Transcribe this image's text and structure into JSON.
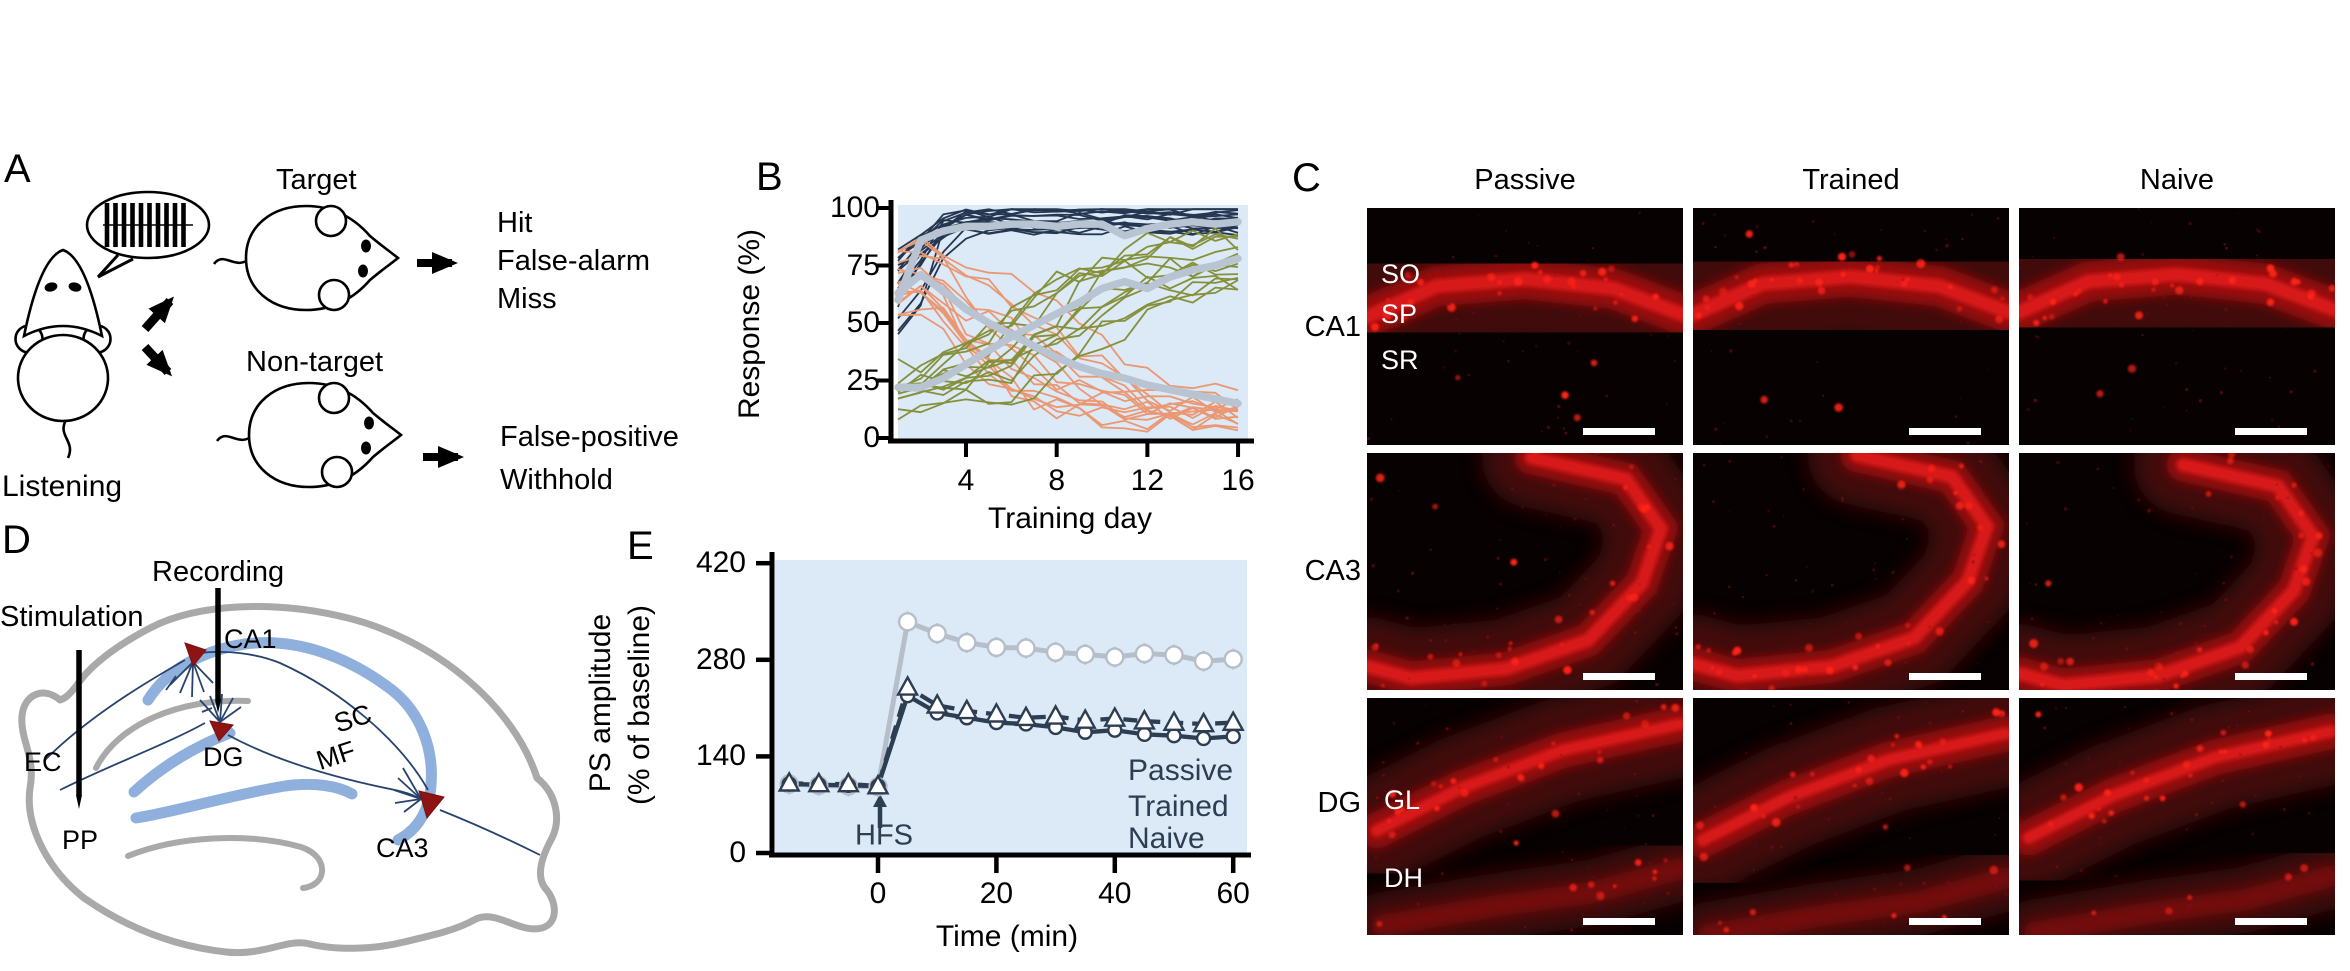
{
  "panels": {
    "a": {
      "label": "A",
      "listening": "Listening",
      "target": "Target",
      "nontarget": "Non-target",
      "target_outcomes": [
        "Hit",
        "False-alarm",
        "Miss"
      ],
      "nontarget_outcomes": [
        "False-positive",
        "Withhold"
      ]
    },
    "b": {
      "label": "B"
    },
    "c": {
      "label": "C",
      "columns": [
        "Passive",
        "Trained",
        "Naive"
      ],
      "rows": [
        {
          "label": "CA1",
          "layers": [
            "SO",
            "SP",
            "SR"
          ]
        },
        {
          "label": "CA3",
          "layers": []
        },
        {
          "label": "DG",
          "layers": [
            "GL",
            "DH"
          ]
        }
      ]
    },
    "d": {
      "label": "D",
      "annotations": {
        "recording": "Recording",
        "stimulation": "Stimulation",
        "ca1": "CA1",
        "sc": "SC",
        "mf": "MF",
        "ec": "EC",
        "dg": "DG",
        "pp": "PP",
        "ca3": "CA3"
      }
    },
    "e": {
      "label": "E",
      "hfs": "HFS"
    }
  },
  "colors": {
    "plot_bg": "#dcE9f7",
    "hit_navy": "#253750",
    "false_alarm_salmon": "#ea9772",
    "withhold_olive": "#84903a",
    "mean_gray": "#b9c4d2",
    "dark_navy": "#2d3e53",
    "trained_gray": "#b6bec9",
    "micro_bg": "#070101",
    "micro_band": "#9e0f0f",
    "micro_core": "#e41c1c",
    "micro_haze": "#4a0707",
    "micro_dot": "#ff2417",
    "outline_gray": "#a9a9a9",
    "band_blue": "#8fb0dc",
    "neuron_red": "#8e1414"
  },
  "chart_data": [
    {
      "panel": "B",
      "type": "line",
      "title": "",
      "xlabel": "Training day",
      "ylabel": "Response (%)",
      "xlim": [
        1,
        16.5
      ],
      "ylim": [
        0,
        100
      ],
      "xticks": [
        4,
        8,
        12,
        16
      ],
      "yticks": [
        100,
        75,
        50,
        25,
        0
      ],
      "grid": false,
      "x": [
        1,
        2,
        3,
        4,
        5,
        6,
        7,
        8,
        9,
        10,
        11,
        12,
        13,
        14,
        15,
        16
      ],
      "series": [
        {
          "name": "hit-mean",
          "role": "group mean",
          "color": "#b9c4d2",
          "values": [
            60,
            86,
            90,
            92,
            92,
            93,
            93,
            92,
            93,
            93,
            88,
            91,
            93,
            94,
            93,
            94
          ]
        },
        {
          "name": "false-alarm-mean",
          "role": "group mean",
          "color": "#b9c4d2",
          "values": [
            63,
            71,
            64,
            56,
            50,
            45,
            40,
            35,
            31,
            28,
            26,
            23,
            21,
            19,
            17,
            15
          ]
        },
        {
          "name": "withhold-mean",
          "role": "group mean",
          "color": "#b9c4d2",
          "values": [
            22,
            22,
            26,
            32,
            38,
            44,
            49,
            54,
            59,
            65,
            68,
            65,
            70,
            73,
            75,
            78
          ]
        }
      ],
      "ensembles": [
        {
          "name": "hit-individual-mice",
          "color": "#253750",
          "n": 18,
          "seed": 7,
          "start": [
            42,
            78
          ],
          "end": [
            90,
            99
          ],
          "mid": [
            1.4,
            2.4
          ],
          "w": [
            0.3,
            0.7
          ],
          "noise": 2.2
        },
        {
          "name": "false-alarm-individual-mice",
          "color": "#ea9772",
          "n": 15,
          "seed": 13,
          "start": [
            52,
            82
          ],
          "end": [
            6,
            24
          ],
          "mid": [
            3.5,
            9.5
          ],
          "w": [
            1.0,
            2.6
          ],
          "noise": 5,
          "bump": [
            6,
            18
          ]
        },
        {
          "name": "withhold-individual-mice",
          "color": "#84903a",
          "n": 14,
          "seed": 5,
          "start": [
            10,
            28
          ],
          "end": [
            66,
            92
          ],
          "mid": [
            5.0,
            10.5
          ],
          "w": [
            1.2,
            2.8
          ],
          "noise": 5
        }
      ]
    },
    {
      "panel": "E",
      "type": "line",
      "title": "",
      "xlabel": "Time (min)",
      "ylabel_line1": "PS amplitude",
      "ylabel_line2": "(% of baseline)",
      "xlim": [
        -18,
        62
      ],
      "ylim": [
        0,
        420
      ],
      "xticks": [
        0,
        20,
        40,
        60
      ],
      "yticks": [
        420,
        280,
        140,
        0
      ],
      "grid": false,
      "annotation": {
        "text": "HFS",
        "x": 0
      },
      "x": [
        -15,
        -10,
        -5,
        0,
        5,
        10,
        15,
        20,
        25,
        30,
        35,
        40,
        45,
        50,
        55,
        60
      ],
      "series": [
        {
          "name": "Passive",
          "marker": "triangle",
          "line_style": "dashed",
          "color": "#2d3e53",
          "marker_size": 10,
          "err": 8,
          "values": [
            101,
            100,
            100,
            97,
            240,
            214,
            206,
            201,
            196,
            198,
            192,
            195,
            191,
            189,
            187,
            189
          ]
        },
        {
          "name": "Trained",
          "marker": "circle",
          "line_style": "solid",
          "color": "#b6bec9",
          "marker_size": 8.5,
          "err": 15,
          "values": [
            100,
            98,
            97,
            96,
            335,
            318,
            305,
            298,
            297,
            291,
            288,
            284,
            289,
            287,
            278,
            281
          ]
        },
        {
          "name": "Naive",
          "marker": "circle",
          "line_style": "solid",
          "color": "#2d3e53",
          "marker_size": 6.5,
          "err": 7,
          "values": [
            100,
            99,
            98,
            97,
            228,
            203,
            196,
            189,
            187,
            182,
            175,
            178,
            172,
            170,
            166,
            169
          ]
        }
      ],
      "legend_position": "lower right"
    }
  ]
}
